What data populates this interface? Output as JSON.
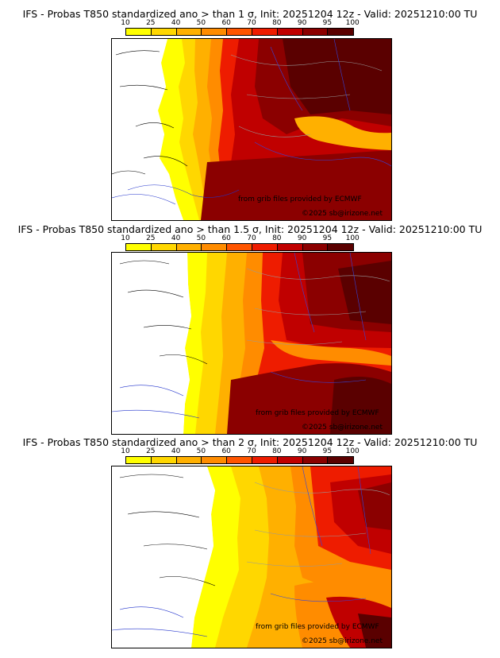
{
  "colors": [
    "#ffff00",
    "#ffd700",
    "#ffb000",
    "#ff8c00",
    "#ff5500",
    "#ee1c00",
    "#c00000",
    "#8b0000",
    "#5a0000"
  ],
  "colorbar_ticks": [
    "10",
    "25",
    "40",
    "50",
    "60",
    "70",
    "80",
    "90",
    "95",
    "100"
  ],
  "credit_source": "from grib files provided by ECMWF",
  "credit_copyright": "©2025 sb@irizone.net",
  "panels": [
    {
      "title": "IFS - Probas T850  standardized ano > than 1 σ, Init: 20251204 12z - Valid: 20251210:00 TU",
      "threshold": "1 σ"
    },
    {
      "title": "IFS - Probas T850  standardized ano > than 1.5 σ, Init: 20251204 12z - Valid: 20251210:00 TU",
      "threshold": "1.5 σ"
    },
    {
      "title": "IFS - Probas T850  standardized ano > than 2 σ, Init: 20251204 12z - Valid: 20251210:00 TU",
      "threshold": "2 σ"
    }
  ]
}
